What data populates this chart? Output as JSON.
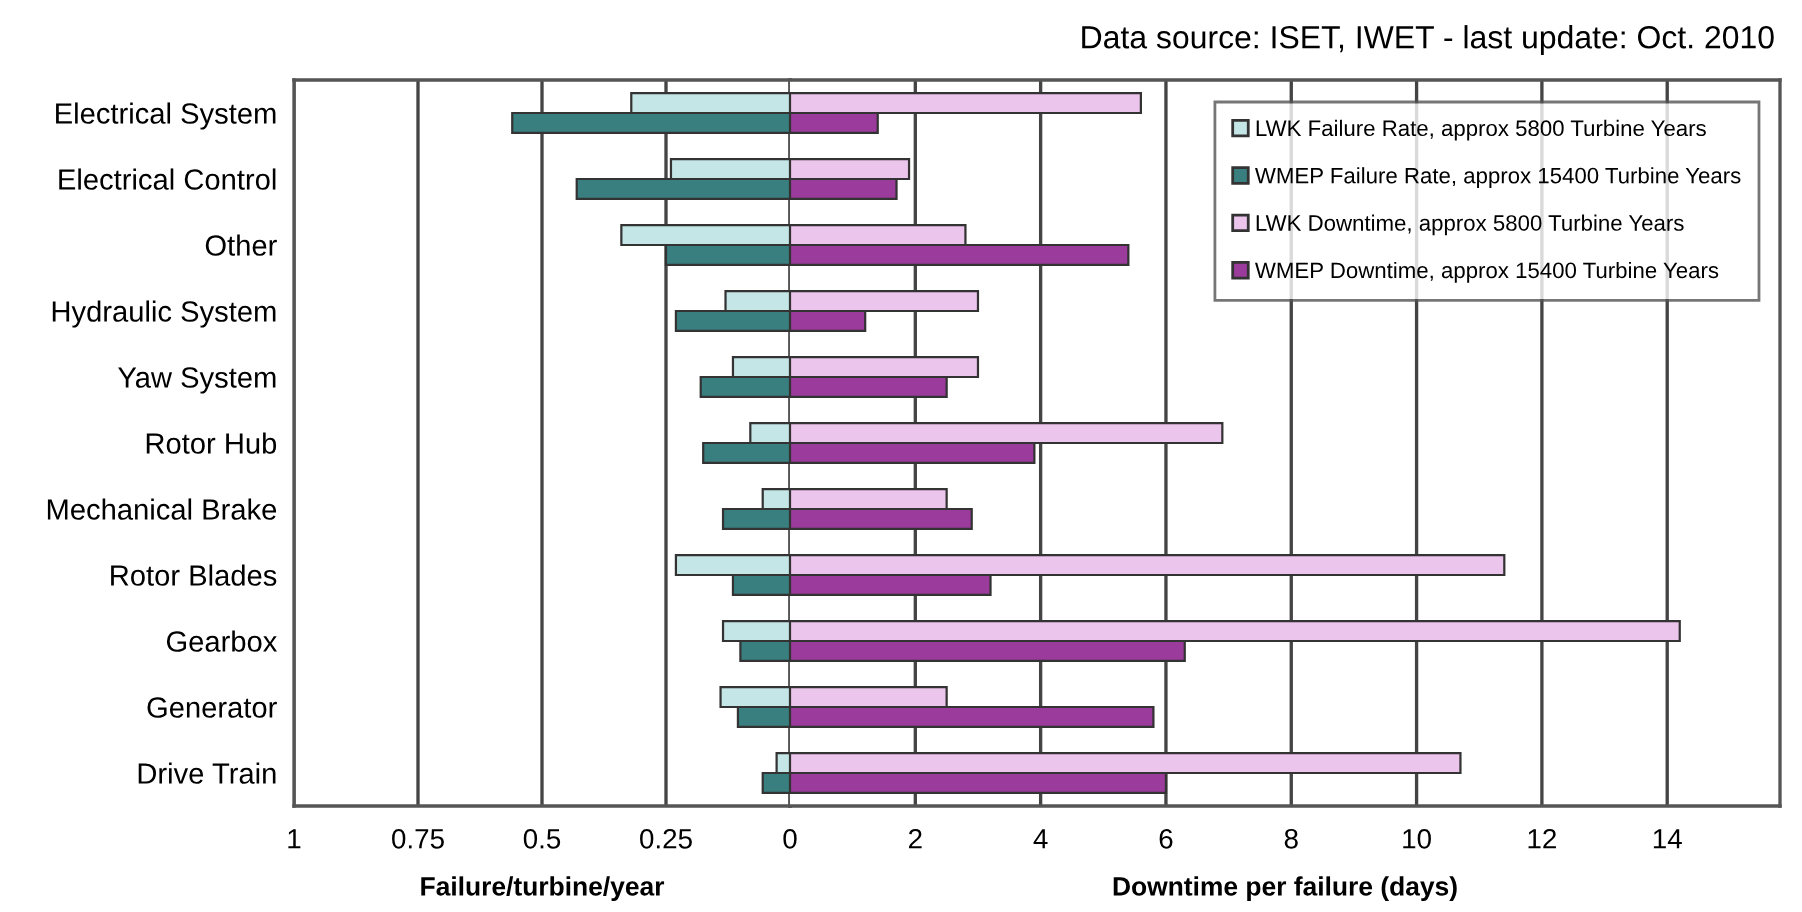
{
  "chart_data": [
    {
      "type": "bar",
      "orientation": "horizontal",
      "xlabel": "Failure/turbine/year",
      "categories": [
        "Electrical System",
        "Electrical Control",
        "Other",
        "Hydraulic System",
        "Yaw System",
        "Rotor Hub",
        "Mechanical Brake",
        "Rotor Blades",
        "Gearbox",
        "Generator",
        "Drive Train"
      ],
      "series": [
        {
          "name": "LWK Failure Rate, approx 5800 Turbine Years",
          "color": "#c5e6e6",
          "values": [
            0.32,
            0.24,
            0.34,
            0.13,
            0.115,
            0.08,
            0.055,
            0.23,
            0.135,
            0.14,
            0.027
          ]
        },
        {
          "name": "WMEP Failure Rate, approx 15400 Turbine Years",
          "color": "#3a7f80",
          "values": [
            0.56,
            0.43,
            0.25,
            0.23,
            0.18,
            0.175,
            0.135,
            0.115,
            0.1,
            0.105,
            0.055
          ]
        }
      ],
      "xlim": [
        1,
        0
      ],
      "xticks": [
        1,
        0.75,
        0.5,
        0.25,
        0
      ],
      "grid": "x",
      "legend": "top right"
    },
    {
      "type": "bar",
      "orientation": "horizontal",
      "xlabel": "Downtime per failure (days)",
      "annotations": [
        "Data source: ISET, IWET - last update: Oct. 2010"
      ],
      "series": [
        {
          "name": "LWK Downtime, approx 5800 Turbine Years",
          "color": "#ecc5ec",
          "values": [
            5.6,
            1.9,
            2.8,
            3.0,
            3.0,
            6.9,
            2.5,
            11.4,
            14.2,
            2.5,
            10.7
          ]
        },
        {
          "name": "WMEP Downtime, approx 15400 Turbine Years",
          "color": "#9b3b9b",
          "values": [
            1.4,
            1.7,
            5.4,
            1.2,
            2.5,
            3.9,
            2.9,
            3.2,
            6.3,
            5.8,
            6.0
          ]
        }
      ],
      "xlim": [
        0,
        15.8
      ],
      "xticks": [
        2,
        4,
        6,
        8,
        10,
        12,
        14
      ],
      "grid": "x",
      "legend": "top right",
      "tick_labels": "x"
    }
  ]
}
